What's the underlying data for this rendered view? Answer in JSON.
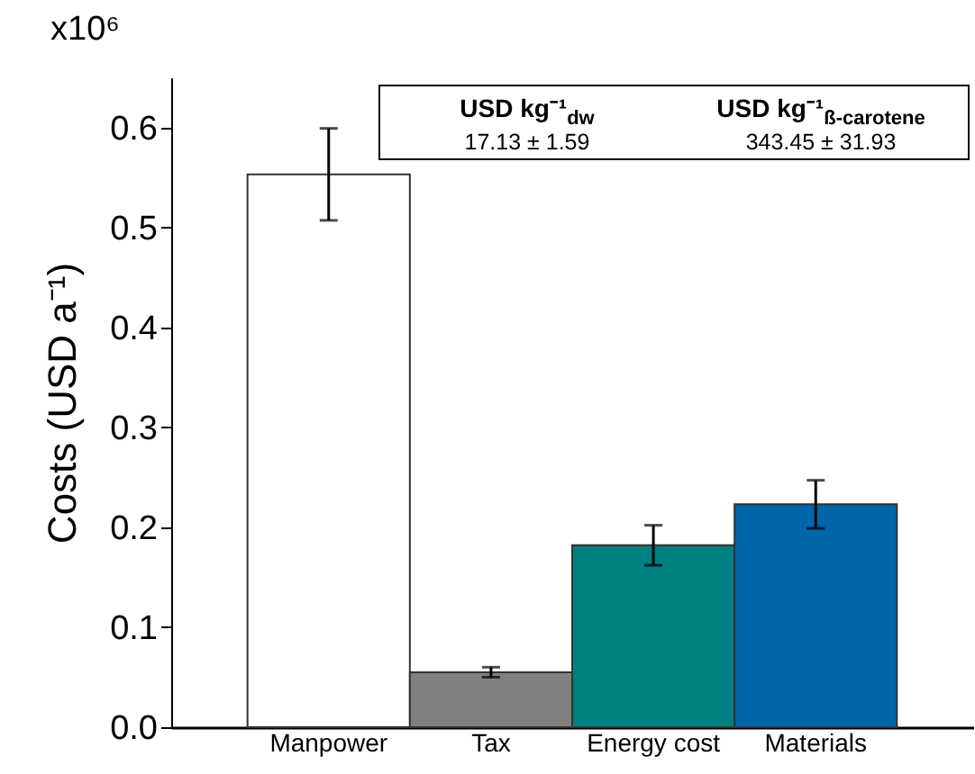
{
  "chart_data": {
    "type": "bar",
    "ylabel": "Costs (USD a⁻¹)",
    "categories": [
      "Manpower",
      "Tax",
      "Energy cost",
      "Materials"
    ],
    "values": [
      0.553,
      0.055,
      0.182,
      0.223
    ],
    "errors": [
      0.046,
      0.005,
      0.02,
      0.024
    ],
    "colors": [
      "#ffffff",
      "#808080",
      "#008080",
      "#0066aa"
    ],
    "ylim": [
      0,
      0.65
    ],
    "yticks": [
      {
        "value": 0,
        "label": "0.0"
      },
      {
        "value": 0.1,
        "label": "0.1"
      },
      {
        "value": 0.2,
        "label": "0.2"
      },
      {
        "value": 0.3,
        "label": "0.3"
      },
      {
        "value": 0.4,
        "label": "0.4"
      },
      {
        "value": 0.5,
        "label": "0.5"
      },
      {
        "value": 0.6,
        "label": "0.6"
      }
    ],
    "annotations": [
      "x10⁶",
      "USD kg⁻¹$_{dw}$",
      "17.13 ± 1.59",
      "USD kg⁻¹$_{ß-carotene}$",
      "343.45 ± 31.93"
    ],
    "grid": false,
    "legend": false
  }
}
